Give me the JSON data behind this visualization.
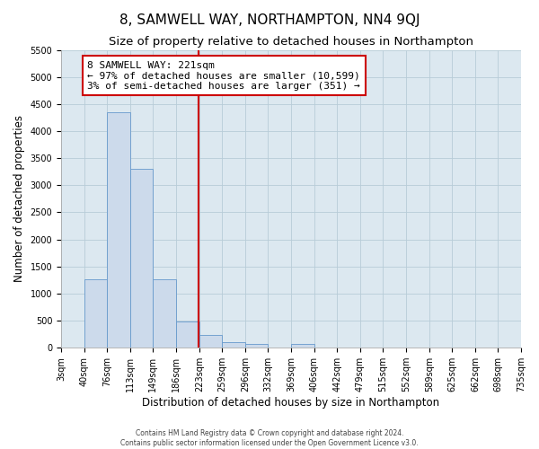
{
  "title": "8, SAMWELL WAY, NORTHAMPTON, NN4 9QJ",
  "subtitle": "Size of property relative to detached houses in Northampton",
  "xlabel": "Distribution of detached houses by size in Northampton",
  "ylabel": "Number of detached properties",
  "footer_line1": "Contains HM Land Registry data © Crown copyright and database right 2024.",
  "footer_line2": "Contains public sector information licensed under the Open Government Licence v3.0.",
  "bin_labels": [
    "3sqm",
    "40sqm",
    "76sqm",
    "113sqm",
    "149sqm",
    "186sqm",
    "223sqm",
    "259sqm",
    "296sqm",
    "332sqm",
    "369sqm",
    "406sqm",
    "442sqm",
    "479sqm",
    "515sqm",
    "552sqm",
    "589sqm",
    "625sqm",
    "662sqm",
    "698sqm",
    "735sqm"
  ],
  "bin_edges": [
    3,
    40,
    76,
    113,
    149,
    186,
    223,
    259,
    296,
    332,
    369,
    406,
    442,
    479,
    515,
    552,
    589,
    625,
    662,
    698,
    735
  ],
  "bar_heights": [
    0,
    1270,
    4350,
    3300,
    1270,
    490,
    230,
    100,
    75,
    0,
    65,
    0,
    0,
    0,
    0,
    0,
    0,
    0,
    0,
    0
  ],
  "bar_color": "#ccdaeb",
  "bar_edge_color": "#6699cc",
  "property_value": 221,
  "property_line_color": "#cc0000",
  "annotation_text": "8 SAMWELL WAY: 221sqm\n← 97% of detached houses are smaller (10,599)\n3% of semi-detached houses are larger (351) →",
  "annotation_box_color": "#ffffff",
  "annotation_box_edge": "#cc0000",
  "ylim": [
    0,
    5500
  ],
  "yticks": [
    0,
    500,
    1000,
    1500,
    2000,
    2500,
    3000,
    3500,
    4000,
    4500,
    5000,
    5500
  ],
  "ax_bg_color": "#dce8f0",
  "background_color": "#ffffff",
  "grid_color": "#b8ccd8",
  "title_fontsize": 11,
  "subtitle_fontsize": 9.5,
  "axis_label_fontsize": 8.5,
  "tick_fontsize": 7,
  "annotation_fontsize": 8,
  "footer_fontsize": 5.5
}
